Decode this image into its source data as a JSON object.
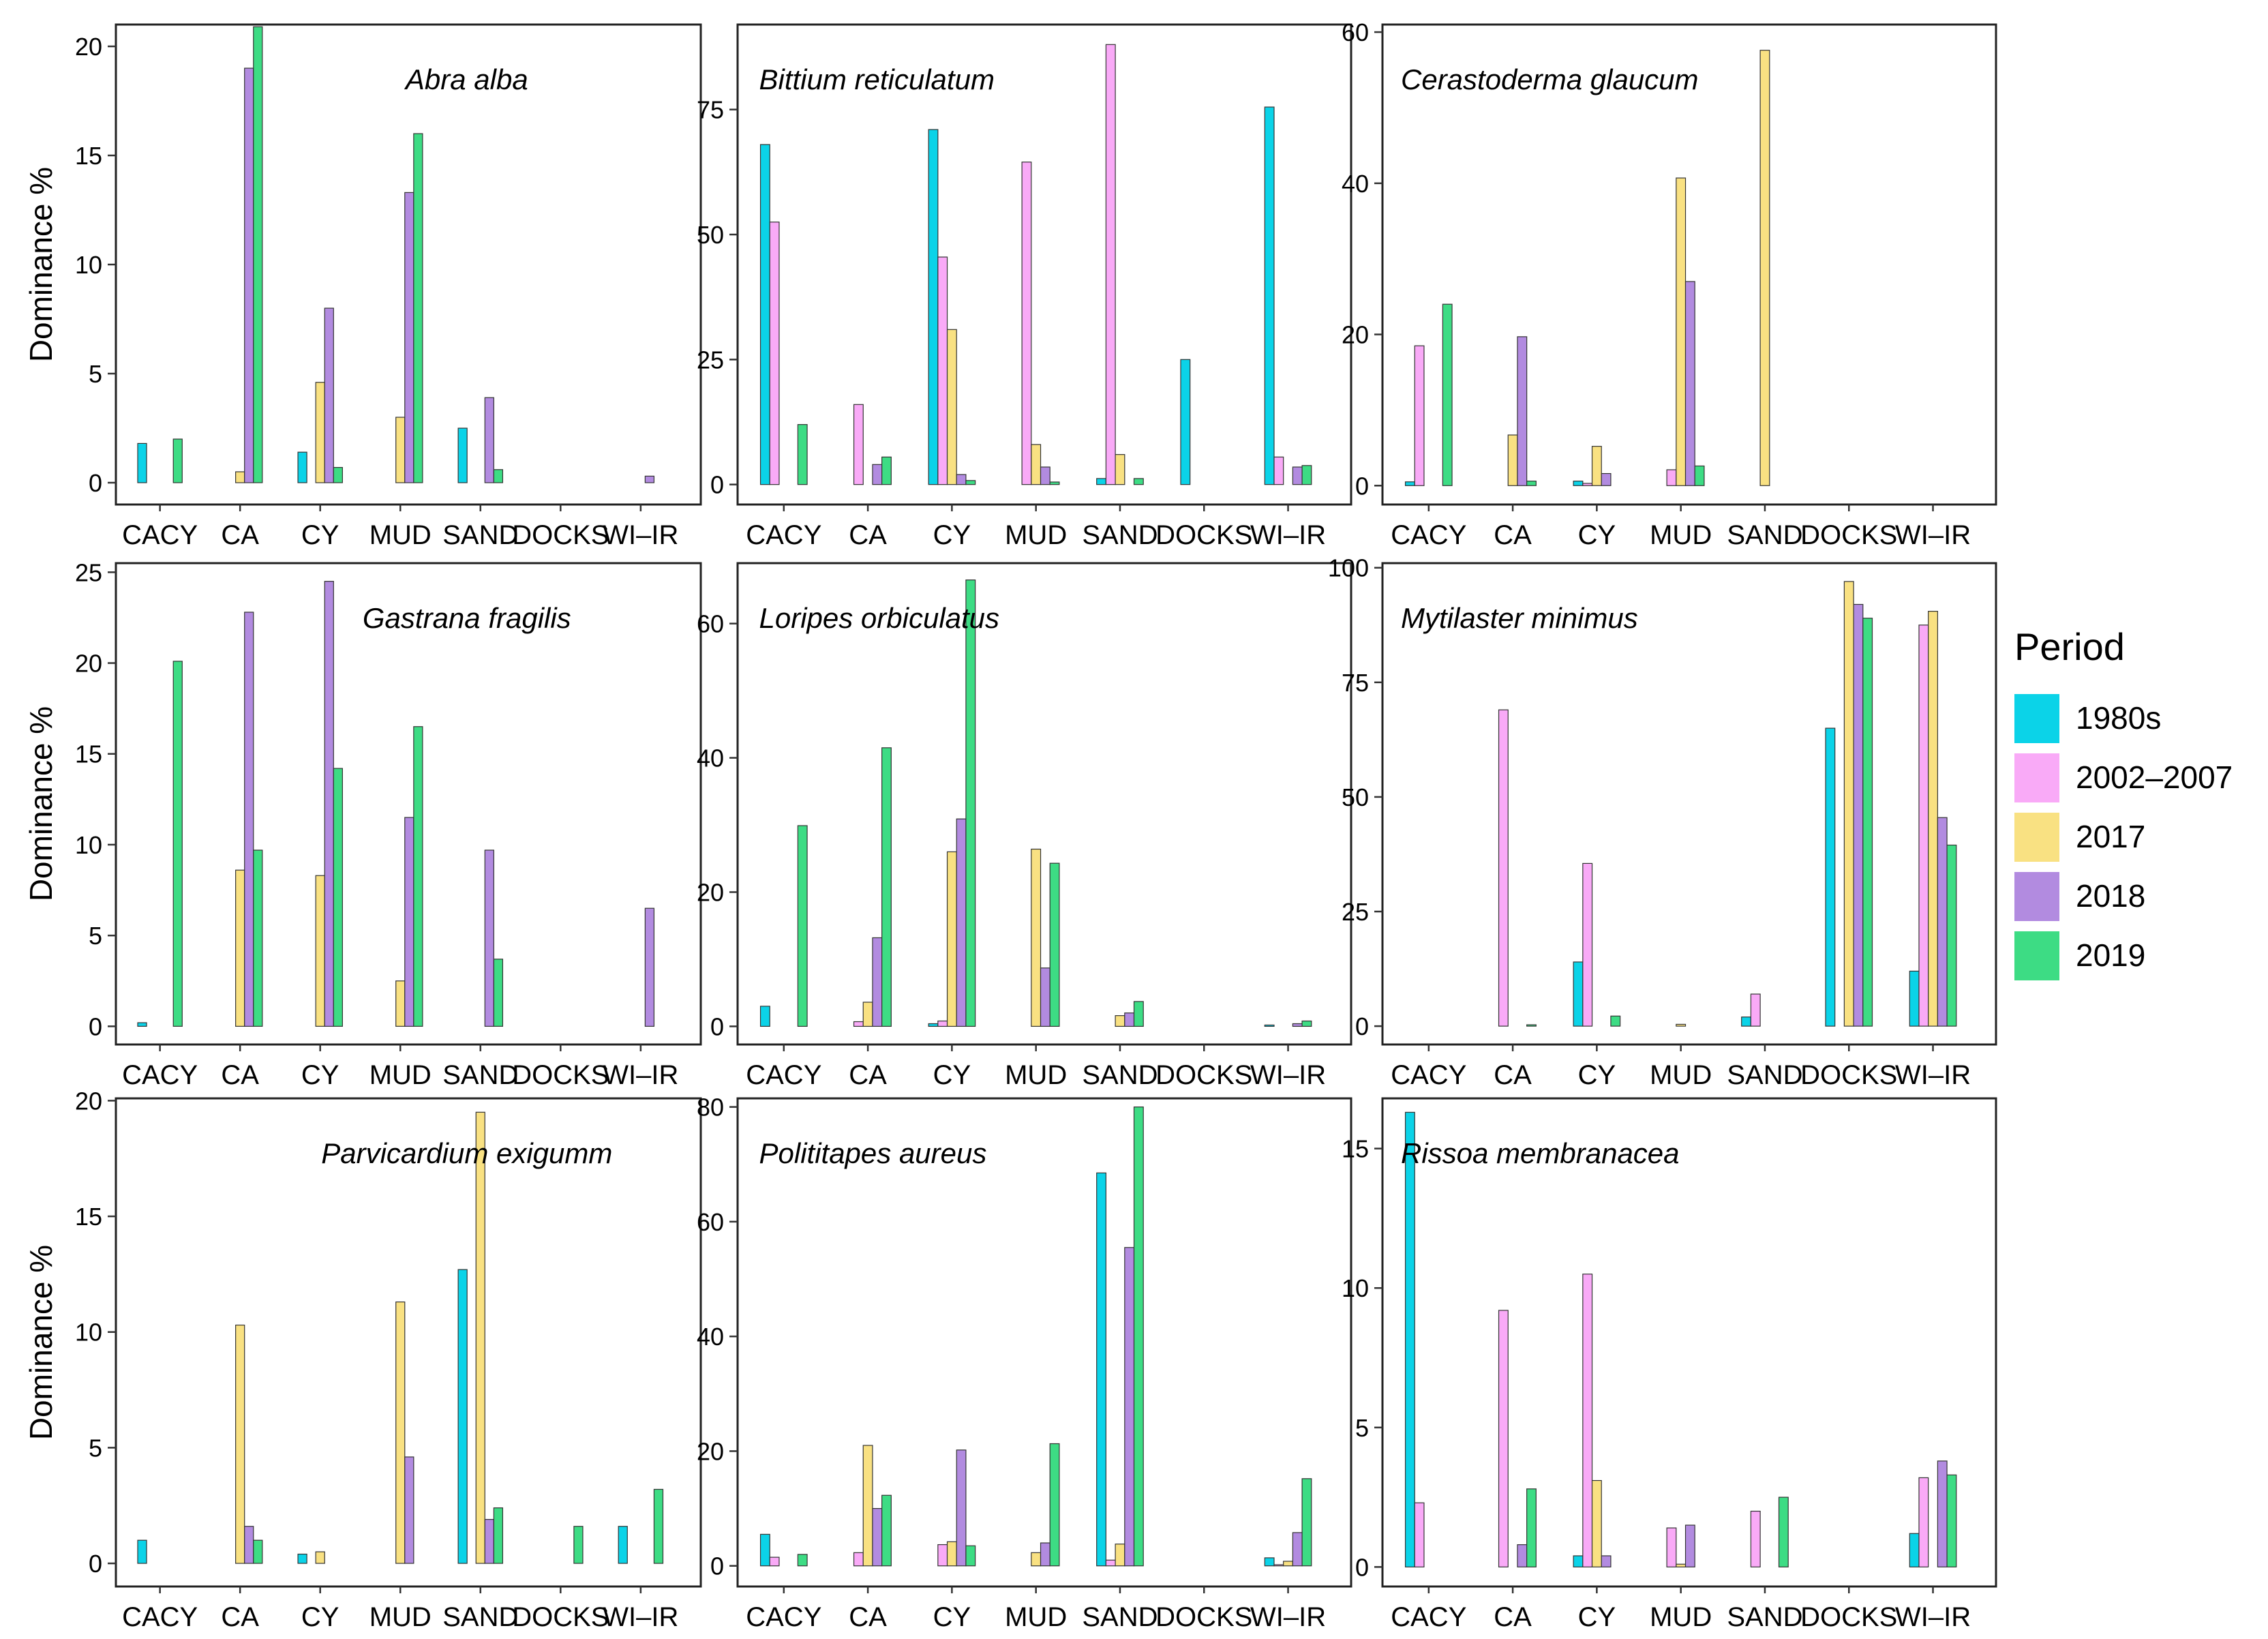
{
  "figure": {
    "ylabel": "Dominance %",
    "legend_title": "Period"
  },
  "colors": {
    "1980s": "#0BD3E8",
    "2002–2007": "#F9AAF7",
    "2017": "#F9E182",
    "2018": "#B28BE0",
    "2019": "#3DDC84"
  },
  "series_names": [
    "1980s",
    "2002–2007",
    "2017",
    "2018",
    "2019"
  ],
  "chart_data": [
    {
      "type": "bar",
      "title": "Abra alba",
      "ylabel": "Dominance %",
      "categories": [
        "CACY",
        "CA",
        "CY",
        "MUD",
        "SAND",
        "DOCKS",
        "WI–IR"
      ],
      "ylim": [
        -1,
        21
      ],
      "yticks": [
        0,
        5,
        10,
        15,
        20
      ],
      "series": [
        {
          "name": "1980s",
          "values": [
            1.8,
            0,
            1.4,
            0,
            2.5,
            0,
            0
          ]
        },
        {
          "name": "2002–2007",
          "values": [
            0,
            0,
            0,
            0,
            0,
            0,
            0
          ]
        },
        {
          "name": "2017",
          "values": [
            0,
            0.5,
            4.6,
            3.0,
            0,
            0,
            0
          ]
        },
        {
          "name": "2018",
          "values": [
            0,
            19.0,
            8.0,
            13.3,
            3.9,
            0,
            0.3
          ]
        },
        {
          "name": "2019",
          "values": [
            2.0,
            20.9,
            0.7,
            16.0,
            0.6,
            0,
            0
          ]
        }
      ]
    },
    {
      "type": "bar",
      "title": "Bittium reticulatum",
      "categories": [
        "CACY",
        "CA",
        "CY",
        "MUD",
        "SAND",
        "DOCKS",
        "WI–IR"
      ],
      "ylim": [
        -4,
        92
      ],
      "yticks": [
        0,
        25,
        50,
        75
      ],
      "series": [
        {
          "name": "1980s",
          "values": [
            68,
            0,
            71,
            0,
            1.2,
            25,
            75.5
          ]
        },
        {
          "name": "2002–2007",
          "values": [
            52.5,
            16,
            45.5,
            64.5,
            88,
            0,
            5.5
          ]
        },
        {
          "name": "2017",
          "values": [
            0,
            0,
            31,
            8,
            6,
            0,
            0
          ]
        },
        {
          "name": "2018",
          "values": [
            0,
            4,
            2,
            3.5,
            0,
            0,
            3.5
          ]
        },
        {
          "name": "2019",
          "values": [
            12,
            5.5,
            0.8,
            0.5,
            1.2,
            0,
            3.8
          ]
        }
      ]
    },
    {
      "type": "bar",
      "title": "Cerastoderma glaucum",
      "categories": [
        "CACY",
        "CA",
        "CY",
        "MUD",
        "SAND",
        "DOCKS",
        "WI–IR"
      ],
      "ylim": [
        -2.5,
        61
      ],
      "yticks": [
        0,
        20,
        40,
        60
      ],
      "series": [
        {
          "name": "1980s",
          "values": [
            0.5,
            0,
            0.6,
            0,
            0,
            0,
            0
          ]
        },
        {
          "name": "2002–2007",
          "values": [
            18.5,
            0,
            0.3,
            2.1,
            0,
            0,
            0
          ]
        },
        {
          "name": "2017",
          "values": [
            0,
            6.7,
            5.2,
            40.7,
            57.6,
            0,
            0
          ]
        },
        {
          "name": "2018",
          "values": [
            0,
            19.7,
            1.6,
            27.0,
            0,
            0,
            0
          ]
        },
        {
          "name": "2019",
          "values": [
            24.0,
            0.6,
            0,
            2.6,
            0,
            0,
            0
          ]
        }
      ]
    },
    {
      "type": "bar",
      "title": "Gastrana fragilis",
      "ylabel": "Dominance %",
      "categories": [
        "CACY",
        "CA",
        "CY",
        "MUD",
        "SAND",
        "DOCKS",
        "WI–IR"
      ],
      "ylim": [
        -1,
        25.5
      ],
      "yticks": [
        0,
        5,
        10,
        15,
        20,
        25
      ],
      "series": [
        {
          "name": "1980s",
          "values": [
            0.2,
            0,
            0,
            0,
            0,
            0,
            0
          ]
        },
        {
          "name": "2002–2007",
          "values": [
            0,
            0,
            0,
            0,
            0,
            0,
            0
          ]
        },
        {
          "name": "2017",
          "values": [
            0,
            8.6,
            8.3,
            2.5,
            0,
            0,
            0
          ]
        },
        {
          "name": "2018",
          "values": [
            0,
            22.8,
            24.5,
            11.5,
            9.7,
            0,
            6.5
          ]
        },
        {
          "name": "2019",
          "values": [
            20.1,
            9.7,
            14.2,
            16.5,
            3.7,
            0,
            0
          ]
        }
      ]
    },
    {
      "type": "bar",
      "title": "Loripes orbiculatus",
      "categories": [
        "CACY",
        "CA",
        "CY",
        "MUD",
        "SAND",
        "DOCKS",
        "WI–IR"
      ],
      "ylim": [
        -2.7,
        69
      ],
      "yticks": [
        0,
        20,
        40,
        60
      ],
      "series": [
        {
          "name": "1980s",
          "values": [
            3.0,
            0,
            0.4,
            0,
            0,
            0,
            0.2
          ]
        },
        {
          "name": "2002–2007",
          "values": [
            0,
            0.7,
            0.8,
            0,
            0,
            0,
            0
          ]
        },
        {
          "name": "2017",
          "values": [
            0,
            3.6,
            26.0,
            26.4,
            1.6,
            0,
            0
          ]
        },
        {
          "name": "2018",
          "values": [
            0,
            13.2,
            30.9,
            8.7,
            2.0,
            0,
            0.4
          ]
        },
        {
          "name": "2019",
          "values": [
            29.9,
            41.5,
            66.5,
            24.3,
            3.7,
            0,
            0.8
          ]
        }
      ]
    },
    {
      "type": "bar",
      "title": "Mytilaster minimus",
      "categories": [
        "CACY",
        "CA",
        "CY",
        "MUD",
        "SAND",
        "DOCKS",
        "WI–IR"
      ],
      "ylim": [
        -4,
        101
      ],
      "yticks": [
        0,
        25,
        50,
        75,
        100
      ],
      "series": [
        {
          "name": "1980s",
          "values": [
            0,
            0,
            14,
            0,
            2,
            65,
            12
          ]
        },
        {
          "name": "2002–2007",
          "values": [
            0,
            69,
            35.5,
            0,
            7,
            0,
            87.5
          ]
        },
        {
          "name": "2017",
          "values": [
            0,
            0,
            0,
            0.4,
            0,
            97,
            90.5
          ]
        },
        {
          "name": "2018",
          "values": [
            0,
            0,
            0,
            0,
            0,
            92,
            45.5
          ]
        },
        {
          "name": "2019",
          "values": [
            0,
            0.3,
            2.2,
            0,
            0,
            89,
            39.5
          ]
        }
      ]
    },
    {
      "type": "bar",
      "title": "Parvicardium exigumm",
      "ylabel": "Dominance %",
      "categories": [
        "CACY",
        "CA",
        "CY",
        "MUD",
        "SAND",
        "DOCKS",
        "WI–IR"
      ],
      "ylim": [
        -1,
        20.1
      ],
      "yticks": [
        0,
        5,
        10,
        15,
        20
      ],
      "series": [
        {
          "name": "1980s",
          "values": [
            1.0,
            0,
            0.4,
            0,
            12.7,
            0,
            1.6
          ]
        },
        {
          "name": "2002–2007",
          "values": [
            0,
            0,
            0,
            0,
            0,
            0,
            0
          ]
        },
        {
          "name": "2017",
          "values": [
            0,
            10.3,
            0.5,
            11.3,
            19.5,
            0,
            0
          ]
        },
        {
          "name": "2018",
          "values": [
            0,
            1.6,
            0,
            4.6,
            1.9,
            0,
            0
          ]
        },
        {
          "name": "2019",
          "values": [
            0,
            1.0,
            0,
            0,
            2.4,
            1.6,
            3.2
          ]
        }
      ]
    },
    {
      "type": "bar",
      "title": "Polititapes aureus",
      "categories": [
        "CACY",
        "CA",
        "CY",
        "MUD",
        "SAND",
        "DOCKS",
        "WI–IR"
      ],
      "ylim": [
        -3.6,
        81.5
      ],
      "yticks": [
        0,
        20,
        40,
        60,
        80
      ],
      "series": [
        {
          "name": "1980s",
          "values": [
            5.5,
            0,
            0,
            0,
            68.5,
            0,
            1.4
          ]
        },
        {
          "name": "2002–2007",
          "values": [
            1.5,
            2.3,
            3.7,
            0,
            1.0,
            0,
            0.2
          ]
        },
        {
          "name": "2017",
          "values": [
            0,
            21.0,
            4.2,
            2.3,
            3.8,
            0,
            0.8
          ]
        },
        {
          "name": "2018",
          "values": [
            0,
            10.0,
            20.2,
            4.0,
            55.5,
            0,
            5.8
          ]
        },
        {
          "name": "2019",
          "values": [
            2.0,
            12.3,
            3.5,
            21.3,
            80.0,
            0,
            15.2
          ]
        }
      ]
    },
    {
      "type": "bar",
      "title": "Rissoa membranacea",
      "categories": [
        "CACY",
        "CA",
        "CY",
        "MUD",
        "SAND",
        "DOCKS",
        "WI–IR"
      ],
      "ylim": [
        -0.7,
        16.8
      ],
      "yticks": [
        0,
        5,
        10,
        15
      ],
      "series": [
        {
          "name": "1980s",
          "values": [
            16.3,
            0,
            0.4,
            0,
            0,
            0,
            1.2
          ]
        },
        {
          "name": "2002–2007",
          "values": [
            2.3,
            9.2,
            10.5,
            1.4,
            2.0,
            0,
            3.2
          ]
        },
        {
          "name": "2017",
          "values": [
            0,
            0,
            3.1,
            0.1,
            0,
            0,
            0
          ]
        },
        {
          "name": "2018",
          "values": [
            0,
            0.8,
            0.4,
            1.5,
            0,
            0,
            3.8
          ]
        },
        {
          "name": "2019",
          "values": [
            0,
            2.8,
            0,
            0,
            2.5,
            0,
            3.3
          ]
        }
      ]
    }
  ]
}
